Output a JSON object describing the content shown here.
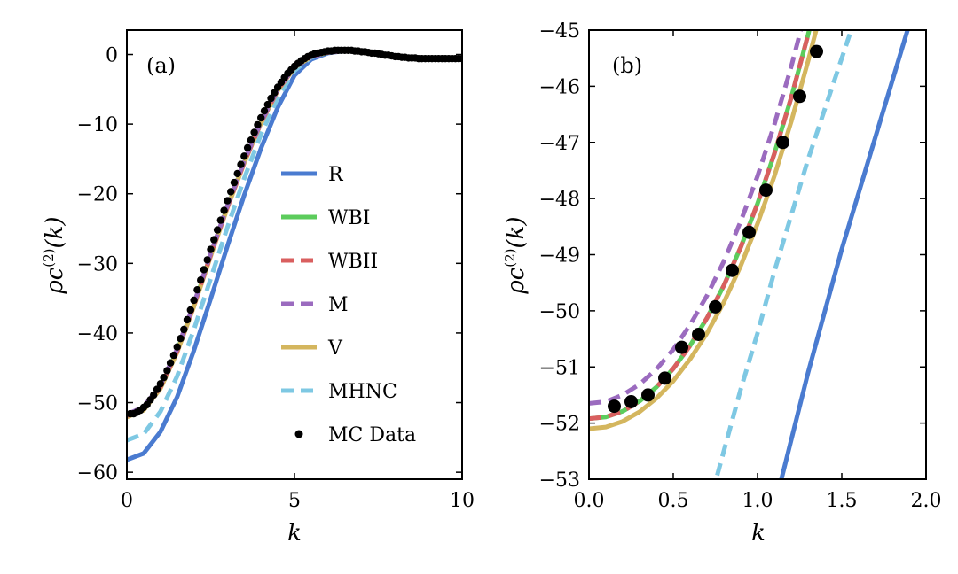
{
  "chart_data": [
    {
      "type": "line",
      "panel_label": "(a)",
      "xlabel": "k",
      "ylabel": "ρc(2)(k)",
      "ylabel_main": "ρc",
      "ylabel_sup": "(2)",
      "ylabel_arg": "(k)",
      "xlim": [
        0,
        10
      ],
      "ylim": [
        -61,
        3.5
      ],
      "xticks": [
        0,
        5,
        10
      ],
      "xtick_labels": [
        "0",
        "5",
        "10"
      ],
      "yticks": [
        0,
        -10,
        -20,
        -30,
        -40,
        -50,
        -60
      ],
      "ytick_labels": [
        "0",
        "−10",
        "−20",
        "−30",
        "−40",
        "−50",
        "−60"
      ],
      "grid": false,
      "legend": {
        "placement": "center-right",
        "entries": [
          {
            "label": "R",
            "style": "solid",
            "color": "#4a7bd0"
          },
          {
            "label": "WBI",
            "style": "solid",
            "color": "#5ccc5c"
          },
          {
            "label": "WBII",
            "style": "dashed",
            "color": "#d95f5f"
          },
          {
            "label": "M",
            "style": "dashed",
            "color": "#9b6bbf"
          },
          {
            "label": "V",
            "style": "solid",
            "color": "#d4b65e"
          },
          {
            "label": "MHNC",
            "style": "dashed",
            "color": "#7ec8e3"
          },
          {
            "label": "MC Data",
            "style": "marker",
            "color": "#000000"
          }
        ]
      },
      "series": [
        {
          "name": "R",
          "style": "solid",
          "color": "#4a7bd0",
          "x": [
            0,
            0.5,
            1,
            1.5,
            2,
            2.5,
            3,
            3.5,
            4,
            4.5,
            5,
            5.5,
            6,
            6.5,
            7
          ],
          "y": [
            -58.2,
            -57.3,
            -54.2,
            -49.2,
            -42.5,
            -35.1,
            -27.5,
            -20.2,
            -13.5,
            -7.6,
            -3.0,
            -0.7,
            0.2,
            0.5,
            0.4
          ]
        },
        {
          "name": "MHNC",
          "style": "dashed",
          "color": "#7ec8e3",
          "x": [
            0,
            0.5,
            1,
            1.5,
            2,
            2.5,
            3,
            3.5,
            4,
            4.5,
            5,
            5.5,
            6,
            6.5,
            7
          ],
          "y": [
            -55.4,
            -54.5,
            -51.3,
            -46.2,
            -39.5,
            -32.2,
            -24.8,
            -17.8,
            -11.5,
            -6.2,
            -2.3,
            -0.4,
            0.3,
            0.5,
            0.4
          ]
        },
        {
          "name": "WBI",
          "style": "solid",
          "color": "#5ccc5c",
          "x": [
            0,
            0.5,
            1,
            1.5,
            2,
            2.5,
            3,
            3.5,
            4,
            4.5,
            5,
            5.5,
            6,
            6.5,
            7
          ],
          "y": [
            -51.9,
            -50.9,
            -47.8,
            -42.6,
            -36.0,
            -28.8,
            -21.9,
            -15.5,
            -9.8,
            -5.1,
            -1.8,
            -0.3,
            0.3,
            0.5,
            0.4
          ]
        },
        {
          "name": "V",
          "style": "solid",
          "color": "#d4b65e",
          "x": [
            0,
            0.5,
            1,
            1.5,
            2,
            2.5,
            3,
            3.5,
            4,
            4.5,
            5,
            5.5,
            6,
            6.5,
            7
          ],
          "y": [
            -52.1,
            -51.1,
            -48.0,
            -42.8,
            -36.2,
            -29.0,
            -22.0,
            -15.6,
            -9.9,
            -5.2,
            -1.9,
            -0.3,
            0.3,
            0.5,
            0.4
          ]
        },
        {
          "name": "WBII",
          "style": "dashed",
          "color": "#d95f5f",
          "x": [
            0,
            0.5,
            1,
            1.5,
            2,
            2.5,
            3,
            3.5,
            4,
            4.5,
            5,
            5.5,
            6,
            6.5,
            7
          ],
          "y": [
            -51.9,
            -50.9,
            -47.8,
            -42.6,
            -36.0,
            -28.8,
            -21.9,
            -15.5,
            -9.8,
            -5.1,
            -1.8,
            -0.3,
            0.3,
            0.5,
            0.4
          ]
        },
        {
          "name": "M",
          "style": "dashed",
          "color": "#9b6bbf",
          "x": [
            0,
            0.5,
            1,
            1.5,
            2,
            2.5,
            3,
            3.5,
            4,
            4.5,
            5,
            5.5,
            6,
            6.5,
            7
          ],
          "y": [
            -51.7,
            -50.6,
            -47.5,
            -42.3,
            -35.8,
            -28.6,
            -21.7,
            -15.3,
            -9.7,
            -5.0,
            -1.8,
            -0.3,
            0.3,
            0.5,
            0.4
          ]
        }
      ],
      "mc_data": {
        "name": "MC Data",
        "x": [
          0.1,
          0.2,
          0.3,
          0.4,
          0.5,
          0.6,
          0.7,
          0.8,
          0.9,
          1.0,
          1.1,
          1.2,
          1.3,
          1.4,
          1.5,
          1.6,
          1.7,
          1.8,
          1.9,
          2.0,
          2.1,
          2.2,
          2.3,
          2.4,
          2.5,
          2.6,
          2.7,
          2.8,
          2.9,
          3.0,
          3.1,
          3.2,
          3.3,
          3.4,
          3.5,
          3.6,
          3.7,
          3.8,
          3.9,
          4.0,
          4.1,
          4.2,
          4.3,
          4.4,
          4.5,
          4.6,
          4.7,
          4.8,
          4.9,
          5.0,
          5.1,
          5.2,
          5.3,
          5.4,
          5.5,
          5.6,
          5.7,
          5.8,
          5.9,
          6.0,
          6.1,
          6.2,
          6.3,
          6.4,
          6.5,
          6.6,
          6.7,
          6.8,
          6.9,
          7.0,
          7.1,
          7.2,
          7.3,
          7.4,
          7.5,
          7.6,
          7.7,
          7.8,
          7.9,
          8.0,
          8.1,
          8.2,
          8.3,
          8.4,
          8.5,
          8.6,
          8.7,
          8.8,
          8.9,
          9.0,
          9.1,
          9.2,
          9.3,
          9.4,
          9.5,
          9.6,
          9.7,
          9.8,
          9.9,
          10.0
        ],
        "y": [
          -51.6,
          -51.6,
          -51.4,
          -51.1,
          -50.7,
          -50.3,
          -49.6,
          -48.9,
          -48.1,
          -47.3,
          -46.4,
          -45.4,
          -44.3,
          -43.2,
          -42.0,
          -40.8,
          -39.5,
          -38.1,
          -36.7,
          -35.3,
          -33.8,
          -32.4,
          -30.9,
          -29.5,
          -28.0,
          -26.6,
          -25.2,
          -23.8,
          -22.4,
          -21.0,
          -19.7,
          -18.4,
          -17.1,
          -15.8,
          -14.6,
          -13.4,
          -12.3,
          -11.2,
          -10.1,
          -9.1,
          -8.1,
          -7.2,
          -6.3,
          -5.5,
          -4.7,
          -4.0,
          -3.3,
          -2.7,
          -2.2,
          -1.7,
          -1.3,
          -0.9,
          -0.6,
          -0.3,
          -0.1,
          0.1,
          0.2,
          0.3,
          0.4,
          0.5,
          0.5,
          0.6,
          0.6,
          0.6,
          0.6,
          0.6,
          0.6,
          0.5,
          0.5,
          0.4,
          0.4,
          0.3,
          0.2,
          0.2,
          0.1,
          0.0,
          -0.1,
          -0.1,
          -0.2,
          -0.3,
          -0.3,
          -0.4,
          -0.4,
          -0.5,
          -0.5,
          -0.5,
          -0.6,
          -0.6,
          -0.6,
          -0.6,
          -0.6,
          -0.6,
          -0.6,
          -0.6,
          -0.6,
          -0.6,
          -0.6,
          -0.6,
          -0.6,
          -0.6
        ]
      }
    },
    {
      "type": "line",
      "panel_label": "(b)",
      "xlabel": "k",
      "ylabel": "ρc(2)(k)",
      "ylabel_main": "ρc",
      "ylabel_sup": "(2)",
      "ylabel_arg": "(k)",
      "xlim": [
        0,
        2.0
      ],
      "ylim": [
        -53,
        -45
      ],
      "xticks": [
        0,
        0.5,
        1.0,
        1.5,
        2.0
      ],
      "xtick_labels": [
        "0.0",
        "0.5",
        "1.0",
        "1.5",
        "2.0"
      ],
      "yticks": [
        -45,
        -46,
        -47,
        -48,
        -49,
        -50,
        -51,
        -52,
        -53
      ],
      "ytick_labels": [
        "−45",
        "−46",
        "−47",
        "−48",
        "−49",
        "−50",
        "−51",
        "−52",
        "−53"
      ],
      "grid": false,
      "series": [
        {
          "name": "V",
          "style": "solid",
          "color": "#d4b65e",
          "x": [
            0,
            0.1,
            0.2,
            0.3,
            0.4,
            0.5,
            0.6,
            0.7,
            0.8,
            0.9,
            1.0,
            1.1,
            1.2,
            1.3,
            1.4
          ],
          "y": [
            -52.1,
            -52.07,
            -51.97,
            -51.8,
            -51.56,
            -51.25,
            -50.86,
            -50.4,
            -49.85,
            -49.2,
            -48.45,
            -47.6,
            -46.63,
            -45.55,
            -44.4
          ]
        },
        {
          "name": "WBI",
          "style": "solid",
          "color": "#5ccc5c",
          "x": [
            0,
            0.1,
            0.2,
            0.3,
            0.4,
            0.5,
            0.6,
            0.7,
            0.8,
            0.9,
            1.0,
            1.1,
            1.2,
            1.3,
            1.4
          ],
          "y": [
            -51.92,
            -51.89,
            -51.79,
            -51.61,
            -51.36,
            -51.03,
            -50.62,
            -50.13,
            -49.55,
            -48.87,
            -48.09,
            -47.2,
            -46.2,
            -45.08,
            -43.85
          ]
        },
        {
          "name": "WBII",
          "style": "dashed",
          "color": "#d95f5f",
          "x": [
            0,
            0.1,
            0.2,
            0.3,
            0.4,
            0.5,
            0.6,
            0.7,
            0.8,
            0.9,
            1.0,
            1.1,
            1.2,
            1.3,
            1.4
          ],
          "y": [
            -51.92,
            -51.89,
            -51.79,
            -51.61,
            -51.36,
            -51.03,
            -50.62,
            -50.13,
            -49.55,
            -48.87,
            -48.09,
            -47.2,
            -46.2,
            -45.08,
            -43.85
          ]
        },
        {
          "name": "M",
          "style": "dashed",
          "color": "#9b6bbf",
          "x": [
            0,
            0.1,
            0.2,
            0.3,
            0.4,
            0.5,
            0.6,
            0.7,
            0.8,
            0.9,
            1.0,
            1.1,
            1.2,
            1.3,
            1.4
          ],
          "y": [
            -51.65,
            -51.62,
            -51.5,
            -51.31,
            -51.04,
            -50.69,
            -50.25,
            -49.73,
            -49.12,
            -48.41,
            -47.6,
            -46.68,
            -45.65,
            -44.5,
            -43.2
          ]
        },
        {
          "name": "MHNC",
          "style": "dashed",
          "color": "#7ec8e3",
          "x": [
            0.7,
            0.8,
            0.9,
            1.0,
            1.1,
            1.2,
            1.3,
            1.4,
            1.5,
            1.6
          ],
          "y": [
            -53.6,
            -52.5,
            -51.4,
            -50.4,
            -49.3,
            -48.3,
            -47.3,
            -46.4,
            -45.5,
            -44.6
          ]
        },
        {
          "name": "R",
          "style": "solid",
          "color": "#4a7bd0",
          "x": [
            1.1,
            1.2,
            1.3,
            1.4,
            1.5,
            1.6,
            1.7,
            1.8,
            1.9
          ],
          "y": [
            -53.5,
            -52.3,
            -51.1,
            -50.0,
            -48.9,
            -47.9,
            -46.9,
            -45.9,
            -44.9
          ]
        }
      ],
      "mc_data": {
        "name": "MC Data",
        "x": [
          0.15,
          0.25,
          0.35,
          0.45,
          0.55,
          0.65,
          0.75,
          0.85,
          0.95,
          1.05,
          1.15,
          1.25,
          1.35
        ],
        "y": [
          -51.7,
          -51.62,
          -51.5,
          -51.2,
          -50.65,
          -50.42,
          -49.93,
          -49.28,
          -48.6,
          -47.85,
          -47.0,
          -46.18,
          -45.38
        ]
      }
    }
  ]
}
